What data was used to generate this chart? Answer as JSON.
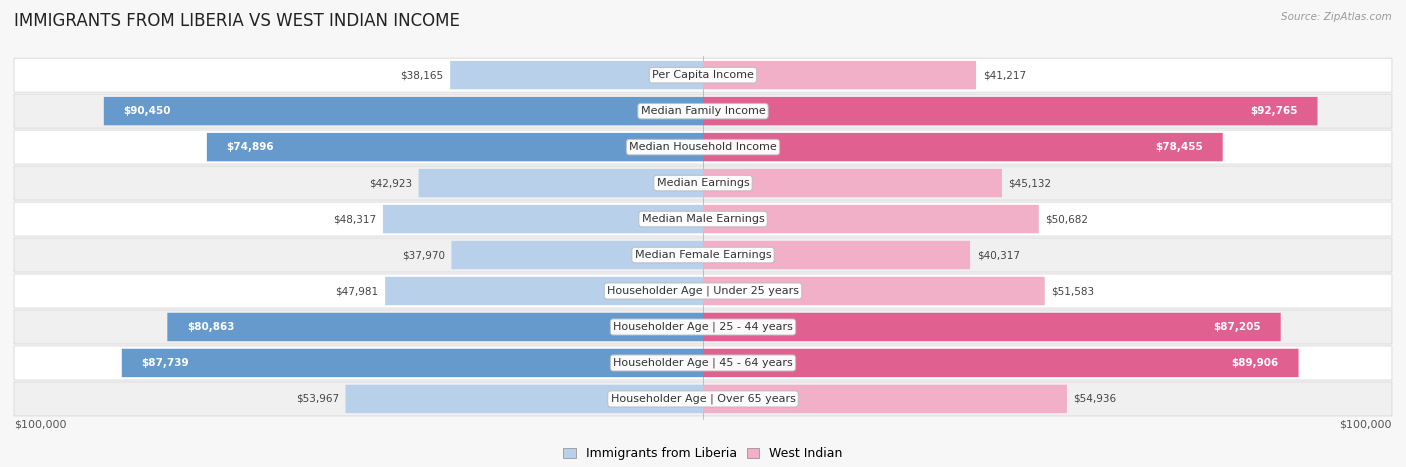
{
  "title": "IMMIGRANTS FROM LIBERIA VS WEST INDIAN INCOME",
  "source": "Source: ZipAtlas.com",
  "categories": [
    "Per Capita Income",
    "Median Family Income",
    "Median Household Income",
    "Median Earnings",
    "Median Male Earnings",
    "Median Female Earnings",
    "Householder Age | Under 25 years",
    "Householder Age | 25 - 44 years",
    "Householder Age | 45 - 64 years",
    "Householder Age | Over 65 years"
  ],
  "liberia_values": [
    38165,
    90450,
    74896,
    42923,
    48317,
    37970,
    47981,
    80863,
    87739,
    53967
  ],
  "west_indian_values": [
    41217,
    92765,
    78455,
    45132,
    50682,
    40317,
    51583,
    87205,
    89906,
    54936
  ],
  "max_value": 100000,
  "liberia_color_light": "#b8d0ea",
  "liberia_color_dark": "#6699cc",
  "west_indian_color_light": "#f2b0c8",
  "west_indian_color_dark": "#e06090",
  "liberia_label": "Immigrants from Liberia",
  "west_indian_label": "West Indian",
  "background_color": "#f7f7f7",
  "label_fontsize": 8.0,
  "title_fontsize": 12,
  "value_fontsize": 7.5,
  "axis_label": "$100,000",
  "large_threshold": 60000
}
